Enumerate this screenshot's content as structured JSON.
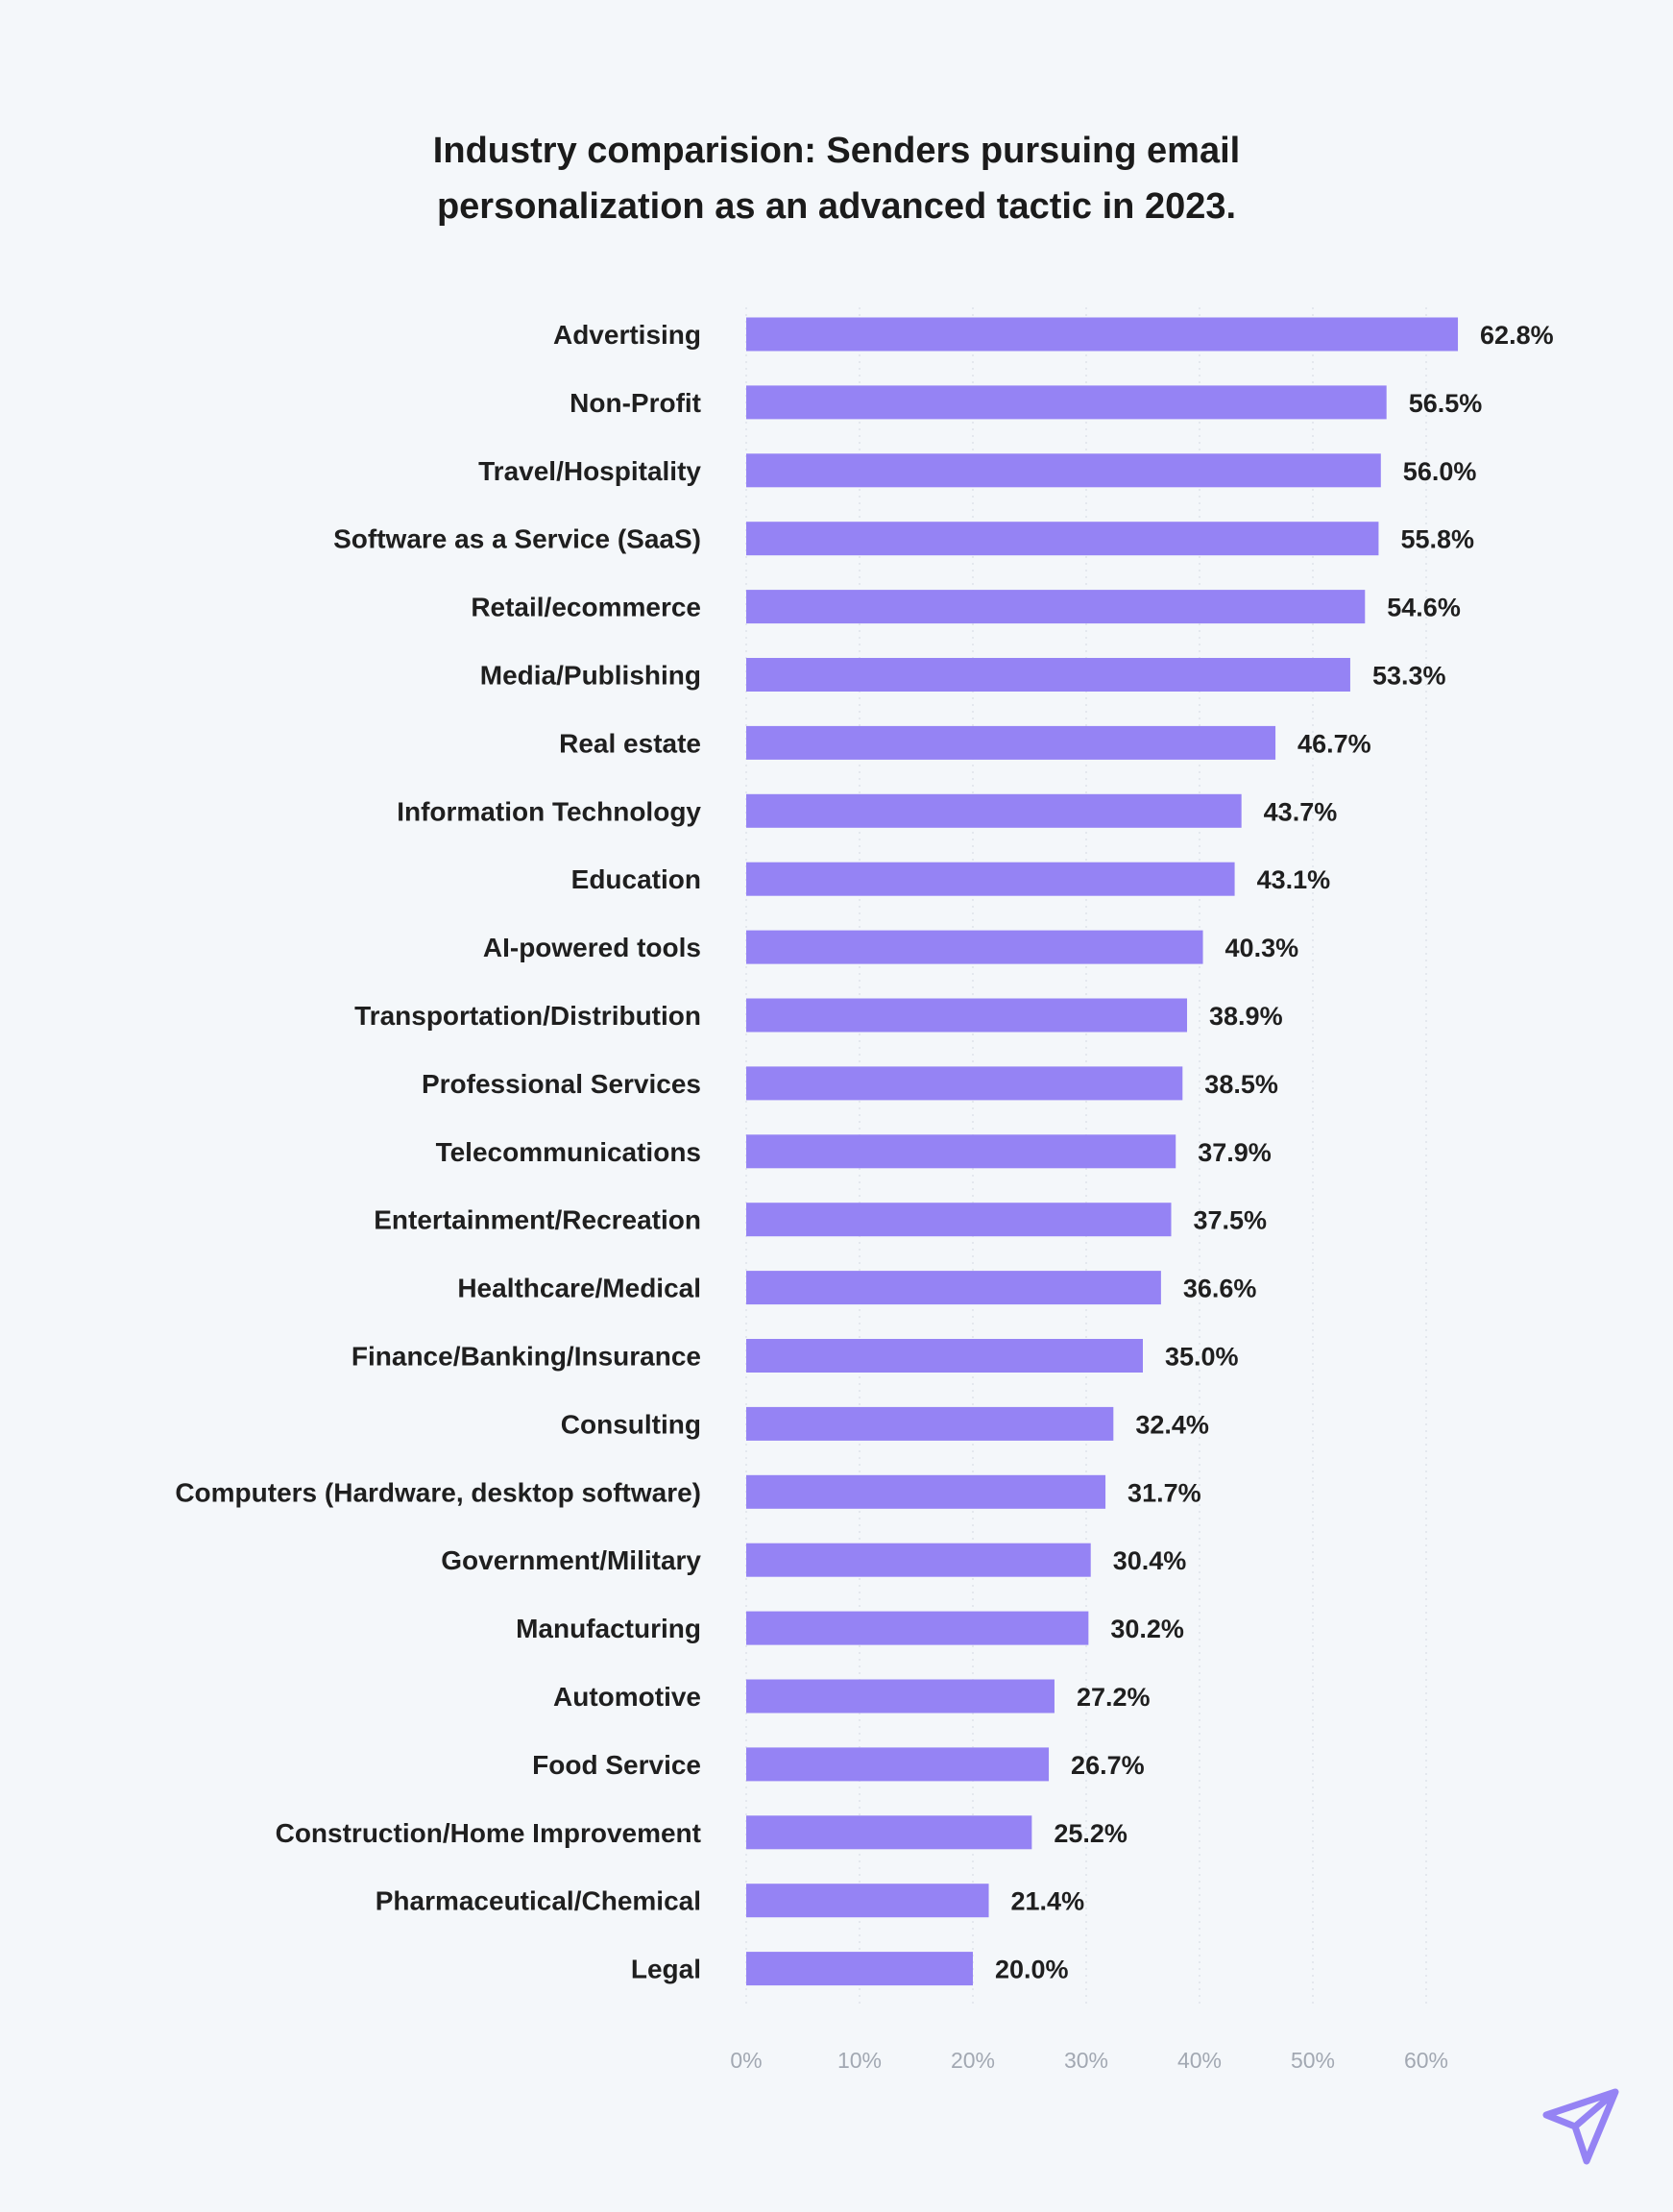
{
  "chart_data": {
    "type": "bar",
    "orientation": "horizontal",
    "title": "Industry comparision: Senders pursuing email personalization as an advanced tactic in 2023.",
    "title_lines": [
      "Industry comparision: Senders pursuing email",
      "personalization as an advanced tactic in 2023."
    ],
    "xlabel": "",
    "ylabel": "",
    "xlim": [
      0,
      60
    ],
    "xticks": [
      0,
      10,
      20,
      30,
      40,
      50,
      60
    ],
    "xtick_labels": [
      "0%",
      "10%",
      "20%",
      "30%",
      "40%",
      "50%",
      "60%"
    ],
    "grid": "vertical dotted",
    "bar_color": "#9583f4",
    "categories": [
      "Advertising",
      "Non-Profit",
      "Travel/Hospitality",
      "Software as a Service (SaaS)",
      "Retail/ecommerce",
      "Media/Publishing",
      "Real estate",
      "Information Technology",
      "Education",
      "AI-powered tools",
      "Transportation/Distribution",
      "Professional Services",
      "Telecommunications",
      "Entertainment/Recreation",
      "Healthcare/Medical",
      "Finance/Banking/Insurance",
      "Consulting",
      "Computers (Hardware, desktop software)",
      "Government/Military",
      "Manufacturing",
      "Automotive",
      "Food Service",
      "Construction/Home Improvement",
      "Pharmaceutical/Chemical",
      "Legal"
    ],
    "values": [
      62.8,
      56.5,
      56.0,
      55.8,
      54.6,
      53.3,
      46.7,
      43.7,
      43.1,
      40.3,
      38.9,
      38.5,
      37.9,
      37.5,
      36.6,
      35.0,
      32.4,
      31.7,
      30.4,
      30.2,
      27.2,
      26.7,
      25.2,
      21.4,
      20.0
    ],
    "value_labels": [
      "62.8%",
      "56.5%",
      "56.0%",
      "55.8%",
      "54.6%",
      "53.3%",
      "46.7%",
      "43.7%",
      "43.1%",
      "40.3%",
      "38.9%",
      "38.5%",
      "37.9%",
      "37.5%",
      "36.6%",
      "35.0%",
      "32.4%",
      "31.7%",
      "30.4%",
      "30.2%",
      "27.2%",
      "26.7%",
      "25.2%",
      "21.4%",
      "20.0%"
    ]
  },
  "branding": {
    "logo_icon": "paper-plane-arrow-icon",
    "logo_color": "#9583f4"
  }
}
